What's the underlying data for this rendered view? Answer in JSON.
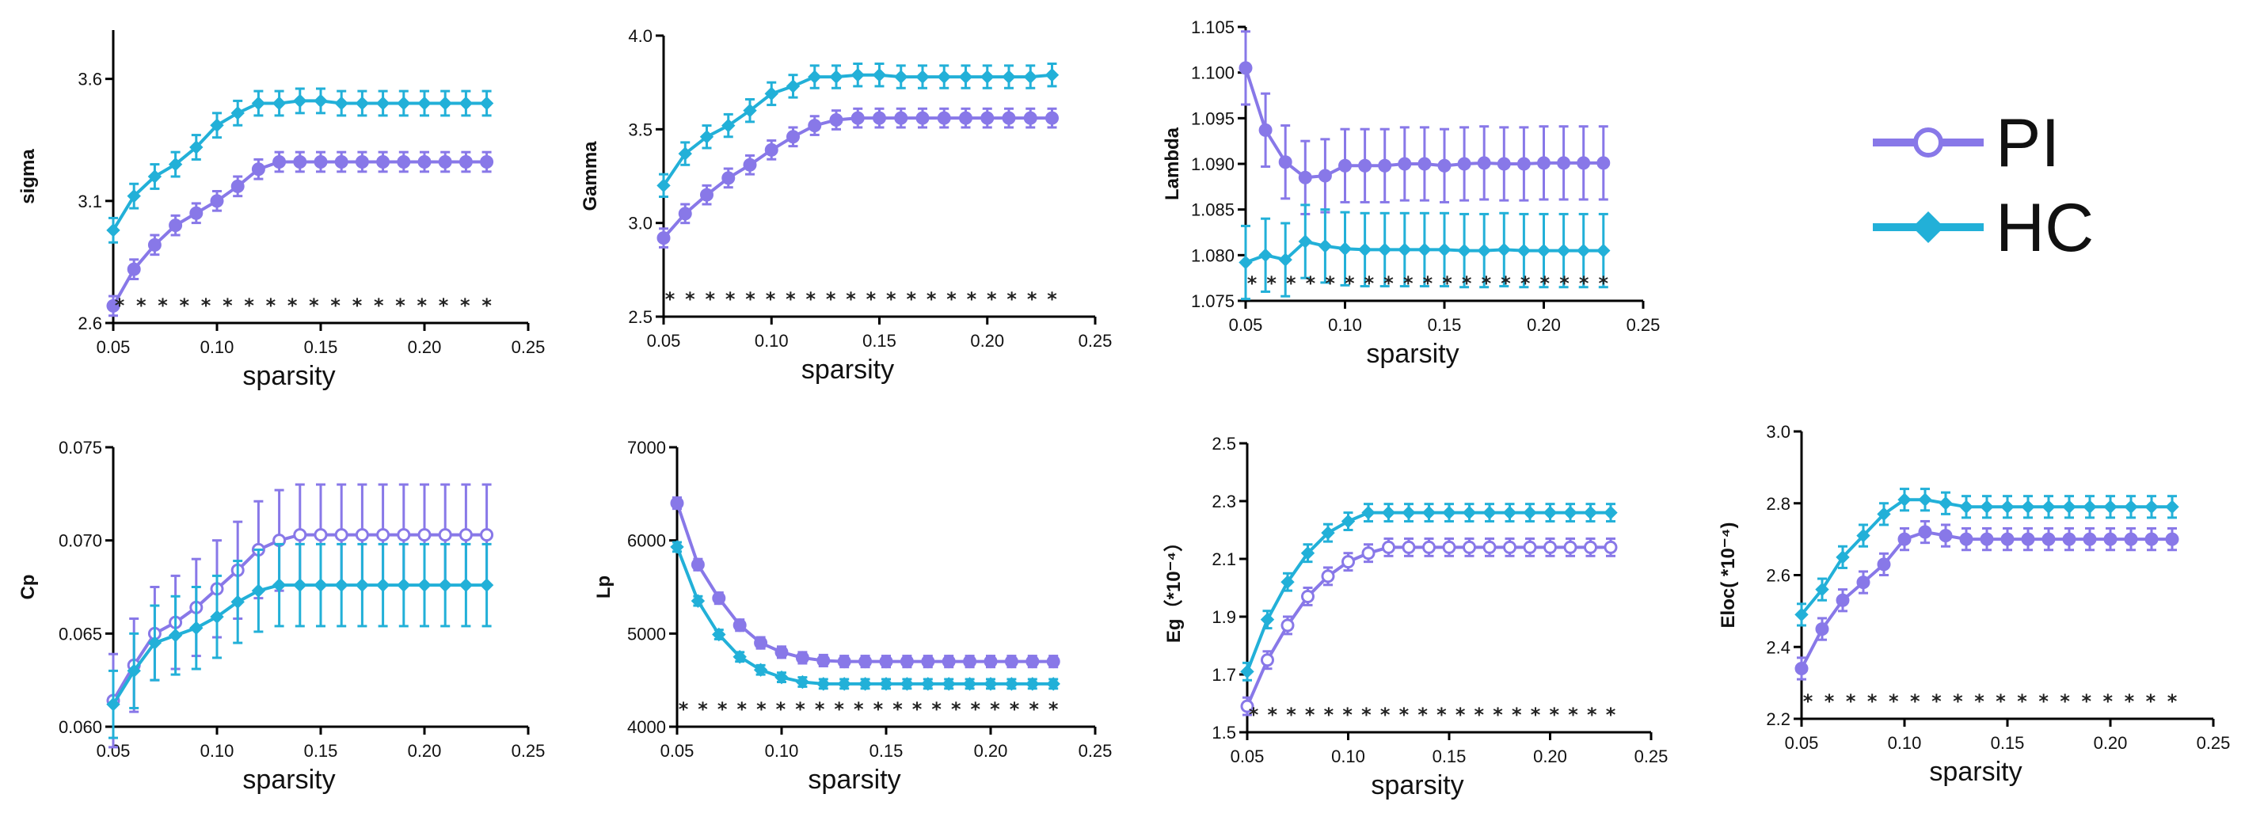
{
  "legend": {
    "series": [
      {
        "name": "PI",
        "color": "#8878e8",
        "marker": "open-circle"
      },
      {
        "name": "HC",
        "color": "#22b0d8",
        "marker": "filled-diamond"
      }
    ]
  },
  "chart_data": [
    {
      "type": "line",
      "title": "",
      "xlabel": "sparsity",
      "ylabel": "sigma",
      "xlim": [
        0.05,
        0.25
      ],
      "ylim": [
        2.6,
        3.8
      ],
      "xticks": [
        "0.05",
        "0.10",
        "0.15",
        "0.20",
        "0.25"
      ],
      "yticks": [
        "2.6",
        "3.1",
        "3.6"
      ],
      "x": [
        0.05,
        0.06,
        0.07,
        0.08,
        0.09,
        0.1,
        0.11,
        0.12,
        0.13,
        0.14,
        0.15,
        0.16,
        0.17,
        0.18,
        0.19,
        0.2,
        0.21,
        0.22,
        0.23
      ],
      "series": [
        {
          "name": "PI",
          "values": [
            2.67,
            2.82,
            2.92,
            3.0,
            3.05,
            3.1,
            3.16,
            3.23,
            3.26,
            3.26,
            3.26,
            3.26,
            3.26,
            3.26,
            3.26,
            3.26,
            3.26,
            3.26,
            3.26
          ],
          "errors": [
            0.04,
            0.04,
            0.04,
            0.04,
            0.04,
            0.04,
            0.04,
            0.04,
            0.04,
            0.04,
            0.04,
            0.04,
            0.04,
            0.04,
            0.04,
            0.04,
            0.04,
            0.04,
            0.04
          ]
        },
        {
          "name": "HC",
          "values": [
            2.98,
            3.12,
            3.2,
            3.25,
            3.32,
            3.41,
            3.46,
            3.5,
            3.5,
            3.51,
            3.51,
            3.5,
            3.5,
            3.5,
            3.5,
            3.5,
            3.5,
            3.5,
            3.5
          ],
          "errors": [
            0.05,
            0.05,
            0.05,
            0.05,
            0.05,
            0.05,
            0.05,
            0.05,
            0.05,
            0.05,
            0.05,
            0.05,
            0.05,
            0.05,
            0.05,
            0.05,
            0.05,
            0.05,
            0.05
          ]
        }
      ],
      "significance": [
        "*",
        "*",
        "*",
        "*",
        "*",
        "*",
        "*",
        "*",
        "*",
        "*",
        "*",
        "*",
        "*",
        "*",
        "*",
        "*",
        "*",
        "*"
      ]
    },
    {
      "type": "line",
      "title": "",
      "xlabel": "sparsity",
      "ylabel": "Gamma",
      "xlim": [
        0.05,
        0.25
      ],
      "ylim": [
        2.5,
        4.0
      ],
      "xticks": [
        "0.05",
        "0.10",
        "0.15",
        "0.20",
        "0.25"
      ],
      "yticks": [
        "2.5",
        "3.0",
        "3.5",
        "4.0"
      ],
      "x": [
        0.05,
        0.06,
        0.07,
        0.08,
        0.09,
        0.1,
        0.11,
        0.12,
        0.13,
        0.14,
        0.15,
        0.16,
        0.17,
        0.18,
        0.19,
        0.2,
        0.21,
        0.22,
        0.23
      ],
      "series": [
        {
          "name": "PI",
          "values": [
            2.92,
            3.05,
            3.15,
            3.24,
            3.31,
            3.39,
            3.46,
            3.52,
            3.55,
            3.56,
            3.56,
            3.56,
            3.56,
            3.56,
            3.56,
            3.56,
            3.56,
            3.56,
            3.56
          ],
          "errors": [
            0.05,
            0.05,
            0.05,
            0.05,
            0.05,
            0.05,
            0.05,
            0.05,
            0.05,
            0.05,
            0.05,
            0.05,
            0.05,
            0.05,
            0.05,
            0.05,
            0.05,
            0.05,
            0.05
          ]
        },
        {
          "name": "HC",
          "values": [
            3.2,
            3.37,
            3.46,
            3.52,
            3.6,
            3.69,
            3.73,
            3.78,
            3.78,
            3.79,
            3.79,
            3.78,
            3.78,
            3.78,
            3.78,
            3.78,
            3.78,
            3.78,
            3.79
          ],
          "errors": [
            0.06,
            0.06,
            0.06,
            0.06,
            0.06,
            0.06,
            0.06,
            0.06,
            0.06,
            0.06,
            0.06,
            0.06,
            0.06,
            0.06,
            0.06,
            0.06,
            0.06,
            0.06,
            0.06
          ]
        }
      ],
      "significance": [
        "*",
        "*",
        "*",
        "*",
        "*",
        "*",
        "*",
        "*",
        "*",
        "*",
        "*",
        "*",
        "*",
        "*",
        "*",
        "*",
        "*",
        "*",
        "*",
        "*"
      ]
    },
    {
      "type": "line",
      "title": "",
      "xlabel": "sparsity",
      "ylabel": "Lambda",
      "xlim": [
        0.05,
        0.25
      ],
      "ylim": [
        1.075,
        1.105
      ],
      "xticks": [
        "0.05",
        "0.10",
        "0.15",
        "0.20",
        "0.25"
      ],
      "yticks": [
        "1.075",
        "1.080",
        "1.085",
        "1.090",
        "1.095",
        "1.100",
        "1.105"
      ],
      "x": [
        0.05,
        0.06,
        0.07,
        0.08,
        0.09,
        0.1,
        0.11,
        0.12,
        0.13,
        0.14,
        0.15,
        0.16,
        0.17,
        0.18,
        0.19,
        0.2,
        0.21,
        0.22,
        0.23
      ],
      "series": [
        {
          "name": "PI",
          "values": [
            1.1005,
            1.0937,
            1.0902,
            1.0885,
            1.0887,
            1.0898,
            1.0898,
            1.0898,
            1.09,
            1.09,
            1.0898,
            1.09,
            1.0901,
            1.09,
            1.09,
            1.0901,
            1.0901,
            1.0901,
            1.0901
          ],
          "errors": [
            0.004,
            0.004,
            0.004,
            0.004,
            0.004,
            0.004,
            0.004,
            0.004,
            0.004,
            0.004,
            0.004,
            0.004,
            0.004,
            0.004,
            0.004,
            0.004,
            0.004,
            0.004,
            0.004
          ]
        },
        {
          "name": "HC",
          "values": [
            1.0792,
            1.08,
            1.0795,
            1.0815,
            1.081,
            1.0807,
            1.0806,
            1.0806,
            1.0806,
            1.0806,
            1.0806,
            1.0805,
            1.0805,
            1.0806,
            1.0805,
            1.0805,
            1.0805,
            1.0805,
            1.0805
          ],
          "errors": [
            0.004,
            0.004,
            0.004,
            0.004,
            0.004,
            0.004,
            0.004,
            0.004,
            0.004,
            0.004,
            0.004,
            0.004,
            0.004,
            0.004,
            0.004,
            0.004,
            0.004,
            0.004,
            0.004
          ]
        }
      ],
      "significance": [
        "*",
        "*",
        "*",
        "*",
        "*",
        "*",
        "*",
        "*",
        "*",
        "*",
        "*",
        "*",
        "*",
        "*",
        "*",
        "*",
        "*",
        "*",
        "*"
      ]
    },
    {
      "type": "line",
      "title": "",
      "xlabel": "sparsity",
      "ylabel": "Cp",
      "xlim": [
        0.05,
        0.25
      ],
      "ylim": [
        0.06,
        0.075
      ],
      "xticks": [
        "0.05",
        "0.10",
        "0.15",
        "0.20",
        "0.25"
      ],
      "yticks": [
        "0.060",
        "0.065",
        "0.070",
        "0.075"
      ],
      "x": [
        0.05,
        0.06,
        0.07,
        0.08,
        0.09,
        0.1,
        0.11,
        0.12,
        0.13,
        0.14,
        0.15,
        0.16,
        0.17,
        0.18,
        0.19,
        0.2,
        0.21,
        0.22,
        0.23
      ],
      "series": [
        {
          "name": "PI",
          "values": [
            0.0614,
            0.0633,
            0.065,
            0.0656,
            0.0664,
            0.0674,
            0.0684,
            0.0695,
            0.07,
            0.0703,
            0.0703,
            0.0703,
            0.0703,
            0.0703,
            0.0703,
            0.0703,
            0.0703,
            0.0703,
            0.0703
          ],
          "errors": [
            0.0025,
            0.0025,
            0.0025,
            0.0025,
            0.0026,
            0.0026,
            0.0026,
            0.0026,
            0.0027,
            0.0027,
            0.0027,
            0.0027,
            0.0027,
            0.0027,
            0.0027,
            0.0027,
            0.0027,
            0.0027,
            0.0027
          ]
        },
        {
          "name": "HC",
          "values": [
            0.0612,
            0.063,
            0.0645,
            0.0649,
            0.0653,
            0.0659,
            0.0667,
            0.0673,
            0.0676,
            0.0676,
            0.0676,
            0.0676,
            0.0676,
            0.0676,
            0.0676,
            0.0676,
            0.0676,
            0.0676,
            0.0676
          ],
          "errors": [
            0.0018,
            0.002,
            0.002,
            0.0021,
            0.0022,
            0.0022,
            0.0022,
            0.0022,
            0.0022,
            0.0022,
            0.0022,
            0.0022,
            0.0022,
            0.0022,
            0.0022,
            0.0022,
            0.0022,
            0.0022,
            0.0022
          ]
        }
      ],
      "significance": []
    },
    {
      "type": "line",
      "title": "",
      "xlabel": "sparsity",
      "ylabel": "Lp",
      "xlim": [
        0.05,
        0.25
      ],
      "ylim": [
        4000,
        7000
      ],
      "xticks": [
        "0.05",
        "0.10",
        "0.15",
        "0.20",
        "0.25"
      ],
      "yticks": [
        "4000",
        "5000",
        "6000",
        "7000"
      ],
      "x": [
        0.05,
        0.06,
        0.07,
        0.08,
        0.09,
        0.1,
        0.11,
        0.12,
        0.13,
        0.14,
        0.15,
        0.16,
        0.17,
        0.18,
        0.19,
        0.2,
        0.21,
        0.22,
        0.23
      ],
      "series": [
        {
          "name": "PI",
          "values": [
            6400,
            5740,
            5380,
            5090,
            4900,
            4800,
            4740,
            4710,
            4700,
            4700,
            4700,
            4700,
            4700,
            4700,
            4700,
            4700,
            4700,
            4700,
            4700
          ],
          "errors": [
            60,
            60,
            60,
            60,
            60,
            60,
            60,
            60,
            60,
            60,
            60,
            60,
            60,
            60,
            60,
            60,
            60,
            60,
            60
          ]
        },
        {
          "name": "HC",
          "values": [
            5930,
            5350,
            4990,
            4750,
            4610,
            4530,
            4480,
            4460,
            4460,
            4460,
            4460,
            4460,
            4460,
            4460,
            4460,
            4460,
            4460,
            4460,
            4460
          ],
          "errors": [
            50,
            50,
            50,
            50,
            50,
            50,
            50,
            50,
            50,
            50,
            50,
            50,
            50,
            50,
            50,
            50,
            50,
            50,
            50
          ]
        }
      ],
      "significance": [
        "*",
        "*",
        "*",
        "*",
        "*",
        "*",
        "*",
        "*",
        "*",
        "*",
        "*",
        "*",
        "*",
        "*",
        "*",
        "*",
        "*",
        "*",
        "*",
        "*"
      ]
    },
    {
      "type": "line",
      "title": "",
      "xlabel": "sparsity",
      "ylabel": "Eg（*10⁻⁴）",
      "xlim": [
        0.05,
        0.25
      ],
      "ylim": [
        1.5,
        2.5
      ],
      "xticks": [
        "0.05",
        "0.10",
        "0.15",
        "0.20",
        "0.25"
      ],
      "yticks": [
        "1.5",
        "1.7",
        "1.9",
        "2.1",
        "2.3",
        "2.5"
      ],
      "x": [
        0.05,
        0.06,
        0.07,
        0.08,
        0.09,
        0.1,
        0.11,
        0.12,
        0.13,
        0.14,
        0.15,
        0.16,
        0.17,
        0.18,
        0.19,
        0.2,
        0.21,
        0.22,
        0.23
      ],
      "series": [
        {
          "name": "PI",
          "values": [
            1.59,
            1.75,
            1.87,
            1.97,
            2.04,
            2.09,
            2.12,
            2.14,
            2.14,
            2.14,
            2.14,
            2.14,
            2.14,
            2.14,
            2.14,
            2.14,
            2.14,
            2.14,
            2.14
          ],
          "errors": [
            0.03,
            0.03,
            0.03,
            0.03,
            0.03,
            0.03,
            0.03,
            0.03,
            0.03,
            0.03,
            0.03,
            0.03,
            0.03,
            0.03,
            0.03,
            0.03,
            0.03,
            0.03,
            0.03
          ]
        },
        {
          "name": "HC",
          "values": [
            1.71,
            1.89,
            2.02,
            2.12,
            2.19,
            2.23,
            2.26,
            2.26,
            2.26,
            2.26,
            2.26,
            2.26,
            2.26,
            2.26,
            2.26,
            2.26,
            2.26,
            2.26,
            2.26
          ],
          "errors": [
            0.03,
            0.03,
            0.03,
            0.03,
            0.03,
            0.03,
            0.03,
            0.03,
            0.03,
            0.03,
            0.03,
            0.03,
            0.03,
            0.03,
            0.03,
            0.03,
            0.03,
            0.03,
            0.03
          ]
        }
      ],
      "significance": [
        "*",
        "*",
        "*",
        "*",
        "*",
        "*",
        "*",
        "*",
        "*",
        "*",
        "*",
        "*",
        "*",
        "*",
        "*",
        "*",
        "*",
        "*",
        "*",
        "*"
      ]
    },
    {
      "type": "line",
      "title": "",
      "xlabel": "sparsity",
      "ylabel": "Eloc(  *10⁻⁴)",
      "xlim": [
        0.05,
        0.25
      ],
      "ylim": [
        2.2,
        3.0
      ],
      "xticks": [
        "0.05",
        "0.10",
        "0.15",
        "0.20",
        "0.25"
      ],
      "yticks": [
        "2.2",
        "2.4",
        "2.6",
        "2.8",
        "3.0"
      ],
      "x": [
        0.05,
        0.06,
        0.07,
        0.08,
        0.09,
        0.1,
        0.11,
        0.12,
        0.13,
        0.14,
        0.15,
        0.16,
        0.17,
        0.18,
        0.19,
        0.2,
        0.21,
        0.22,
        0.23
      ],
      "series": [
        {
          "name": "PI",
          "values": [
            2.34,
            2.45,
            2.53,
            2.58,
            2.63,
            2.7,
            2.72,
            2.71,
            2.7,
            2.7,
            2.7,
            2.7,
            2.7,
            2.7,
            2.7,
            2.7,
            2.7,
            2.7,
            2.7
          ],
          "errors": [
            0.03,
            0.03,
            0.03,
            0.03,
            0.03,
            0.03,
            0.03,
            0.03,
            0.03,
            0.03,
            0.03,
            0.03,
            0.03,
            0.03,
            0.03,
            0.03,
            0.03,
            0.03,
            0.03
          ]
        },
        {
          "name": "HC",
          "values": [
            2.49,
            2.56,
            2.65,
            2.71,
            2.77,
            2.81,
            2.81,
            2.8,
            2.79,
            2.79,
            2.79,
            2.79,
            2.79,
            2.79,
            2.79,
            2.79,
            2.79,
            2.79,
            2.79
          ],
          "errors": [
            0.03,
            0.03,
            0.03,
            0.03,
            0.03,
            0.03,
            0.03,
            0.03,
            0.03,
            0.03,
            0.03,
            0.03,
            0.03,
            0.03,
            0.03,
            0.03,
            0.03,
            0.03,
            0.03
          ]
        }
      ],
      "significance": [
        "*",
        "*",
        "*",
        "*",
        "*",
        "*",
        "*",
        "*",
        "*",
        "*",
        "*",
        "*",
        "*",
        "*",
        "*",
        "*",
        "*",
        "*"
      ]
    }
  ]
}
